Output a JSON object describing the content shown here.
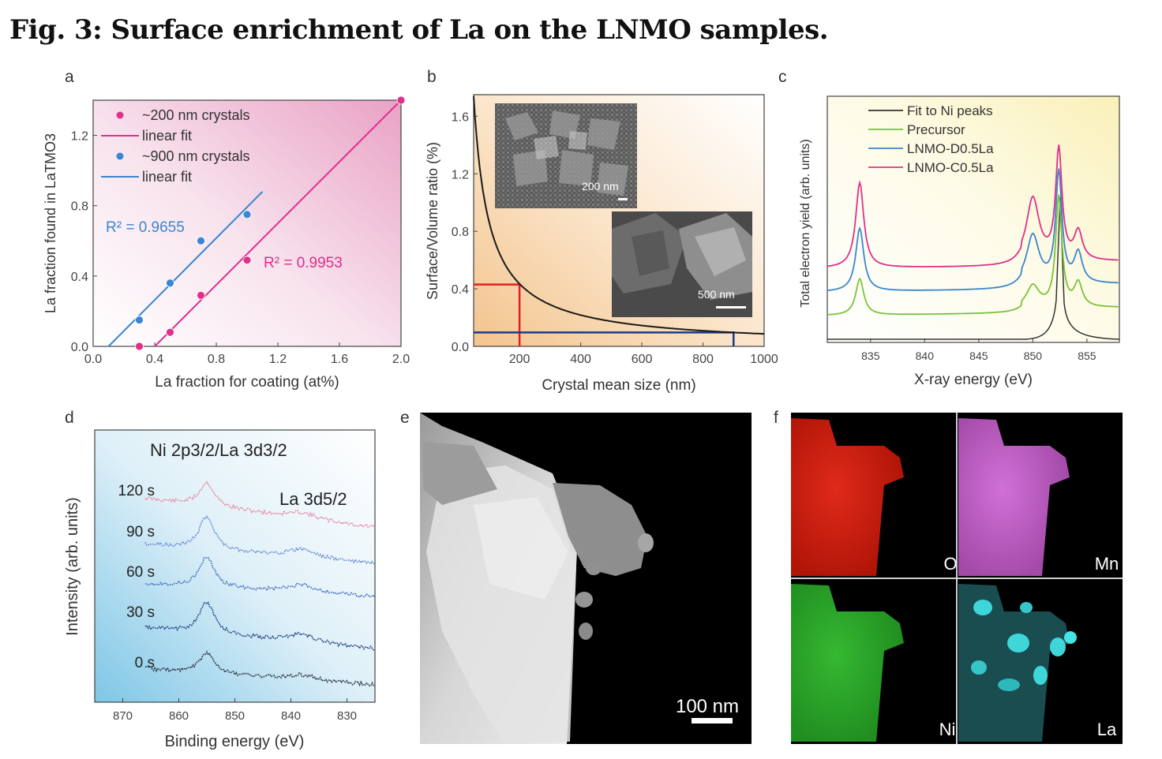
{
  "figure": {
    "title": "Fig. 3: Surface enrichment of La on the LNMO samples.",
    "panel_labels": [
      "a",
      "b",
      "c",
      "d",
      "e",
      "f"
    ]
  },
  "chart_data": [
    {
      "panel": "a",
      "type": "scatter",
      "xlabel": "La fraction for coating (at%)",
      "ylabel": "La fraction found in LaTMO3",
      "xlim": [
        0.0,
        2.0
      ],
      "ylim": [
        0.0,
        1.4
      ],
      "xticks": [
        "0.0",
        "0.4",
        "0.8",
        "1.2",
        "1.6",
        "2.0"
      ],
      "yticks": [
        "0.0",
        "0.4",
        "0.8",
        "1.2"
      ],
      "legend": [
        "~200 nm crystals",
        "linear fit",
        "~900 nm crystals",
        "linear fit"
      ],
      "annotations": [
        "R² = 0.9655",
        "R² = 0.9953"
      ],
      "series": [
        {
          "name": "~200 nm crystals",
          "color": "#e0308a",
          "x": [
            0.3,
            0.5,
            0.7,
            1.0,
            2.0
          ],
          "y": [
            0.0,
            0.08,
            0.29,
            0.49,
            1.4
          ]
        },
        {
          "name": "~900 nm crystals",
          "color": "#3a86d0",
          "x": [
            0.3,
            0.5,
            0.7,
            1.0
          ],
          "y": [
            0.15,
            0.36,
            0.6,
            0.75
          ]
        }
      ],
      "fits": [
        {
          "color": "#e0308a",
          "x": [
            0.4,
            2.0
          ],
          "y": [
            0.0,
            1.4
          ]
        },
        {
          "color": "#3a86d0",
          "x": [
            0.1,
            1.1
          ],
          "y": [
            0.0,
            0.88
          ]
        }
      ]
    },
    {
      "panel": "b",
      "type": "line",
      "xlabel": "Crystal mean size (nm)",
      "ylabel": "Surface/Volume ratio (%)",
      "xlim": [
        50,
        1000
      ],
      "ylim": [
        0.0,
        1.75
      ],
      "xticks": [
        "200",
        "400",
        "600",
        "800",
        "1000"
      ],
      "yticks": [
        "0.0",
        "0.4",
        "0.8",
        "1.2",
        "1.6"
      ],
      "curve": {
        "x": [
          50,
          75,
          100,
          150,
          200,
          300,
          400,
          500,
          600,
          700,
          800,
          900,
          1000
        ],
        "y": [
          1.74,
          1.16,
          0.87,
          0.58,
          0.43,
          0.29,
          0.22,
          0.17,
          0.145,
          0.124,
          0.108,
          0.097,
          0.087
        ]
      },
      "markers": [
        {
          "color": "#e02020",
          "x": 200,
          "y": 0.43
        },
        {
          "color": "#1b3a8c",
          "x": 900,
          "y": 0.097
        }
      ],
      "insets": [
        "200 nm",
        "500 nm"
      ]
    },
    {
      "panel": "c",
      "type": "line",
      "xlabel": "X-ray energy (eV)",
      "ylabel": "Total electron yield (arb. units)",
      "xlim": [
        831,
        858
      ],
      "xticks": [
        "835",
        "840",
        "845",
        "850",
        "855"
      ],
      "legend": [
        "Fit to Ni peaks",
        "Precursor",
        "LNMO-D0.5La",
        "LNMO-C0.5La"
      ],
      "series": [
        {
          "name": "Fit to Ni peaks",
          "color": "#333333"
        },
        {
          "name": "Precursor",
          "color": "#7cc23a"
        },
        {
          "name": "LNMO-D0.5La",
          "color": "#3a86d0"
        },
        {
          "name": "LNMO-C0.5La",
          "color": "#e0308a"
        }
      ]
    },
    {
      "panel": "d",
      "type": "line",
      "xlabel": "Binding energy (eV)",
      "ylabel": "Intensity (arb. units)",
      "xlim": [
        875,
        825
      ],
      "xticks": [
        "870",
        "860",
        "850",
        "840",
        "830"
      ],
      "series_labels": [
        "120 s",
        "90 s",
        "60 s",
        "30 s",
        "0 s"
      ],
      "annotations": {
        "peak1": "Ni 2p3/2/La 3d3/2",
        "peak2": "La 3d5/2"
      }
    }
  ],
  "images": {
    "e": {
      "scale_bar": "100 nm"
    },
    "f": {
      "maps": [
        "O",
        "Mn",
        "Ni",
        "La"
      ]
    }
  }
}
